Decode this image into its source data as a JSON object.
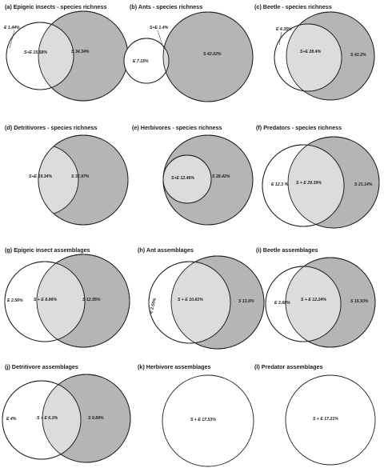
{
  "colors": {
    "species": "#b5b5b5",
    "overlap": "#dcdcdc",
    "env": "#ffffff",
    "stroke": "#1e1e1e"
  },
  "panels": [
    {
      "letter": "(a)",
      "title": "Epigeic insects - species richness",
      "labels": {
        "env": "E 1.44%",
        "overlap": "S+E 15.58%",
        "species": "S 34.34%"
      }
    },
    {
      "letter": "(b)",
      "title": "Ants - species richness",
      "labels": {
        "env": "E 7.15%",
        "overlap": "S+E 1.4%",
        "species": "S 42.02%"
      }
    },
    {
      "letter": "(c)",
      "title": "Beetle - species richness",
      "labels": {
        "env": "E 4.35%",
        "overlap": "S+E 28.4%",
        "species": "S 42.2%"
      }
    },
    {
      "letter": "(d)",
      "title": "Detritivores - species richness",
      "labels": {
        "overlap": "S+E 19.34%",
        "species": "S 32.97%"
      }
    },
    {
      "letter": "(e)",
      "title": "Herbivores - species richness",
      "labels": {
        "overlap": "S+E 12.46%",
        "species": "S 28.42%"
      }
    },
    {
      "letter": "(f)",
      "title": "Predators - species richness",
      "labels": {
        "env": "E 12.3 %",
        "overlap": "S + E 29.39%",
        "species": "S 21.14%"
      }
    },
    {
      "letter": "(g)",
      "title": "Epigeic insect assemblages",
      "labels": {
        "env": "E 2.56%",
        "overlap": "S + E 8.86%",
        "species": "S 12.95%"
      }
    },
    {
      "letter": "(h)",
      "title": "Ant assemblages",
      "labels": {
        "env": "E 2.55%",
        "overlap": "S + E 10.81%",
        "species": "S 13.6%"
      }
    },
    {
      "letter": "(i)",
      "title": "Beetle assemblages",
      "labels": {
        "env": "E 3.68%",
        "overlap": "S + E 12.24%",
        "species": "S 15.93%"
      }
    },
    {
      "letter": "(j)",
      "title": "Detritivore assemblages",
      "labels": {
        "env": "E 4%",
        "overlap": "S + E 6.3%",
        "species": "S 9.89%"
      }
    },
    {
      "letter": "(k)",
      "title": "Herbivore assemblages",
      "labels": {
        "overlap": "S + E 17.53%"
      }
    },
    {
      "letter": "(l)",
      "title": "Predator assemblages",
      "labels": {
        "overlap": "S + E 17.21%"
      }
    }
  ]
}
